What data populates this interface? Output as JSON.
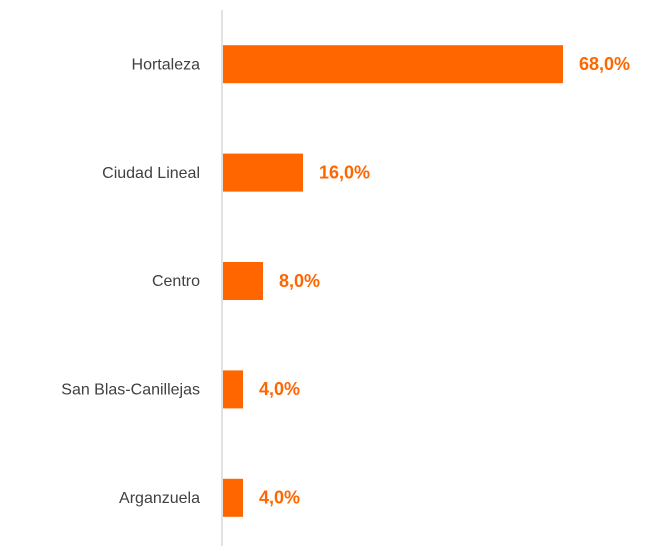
{
  "chart_data": {
    "type": "hbar",
    "categories": [
      "Hortaleza",
      "Ciudad Lineal",
      "Centro",
      "San Blas-Canillejas",
      "Arganzuela"
    ],
    "values": [
      68,
      16,
      8,
      4,
      4
    ],
    "value_labels": [
      "68,0%",
      "16,0%",
      "8,0%",
      "4,0%",
      "4,0%"
    ],
    "color": "#ff6600"
  }
}
